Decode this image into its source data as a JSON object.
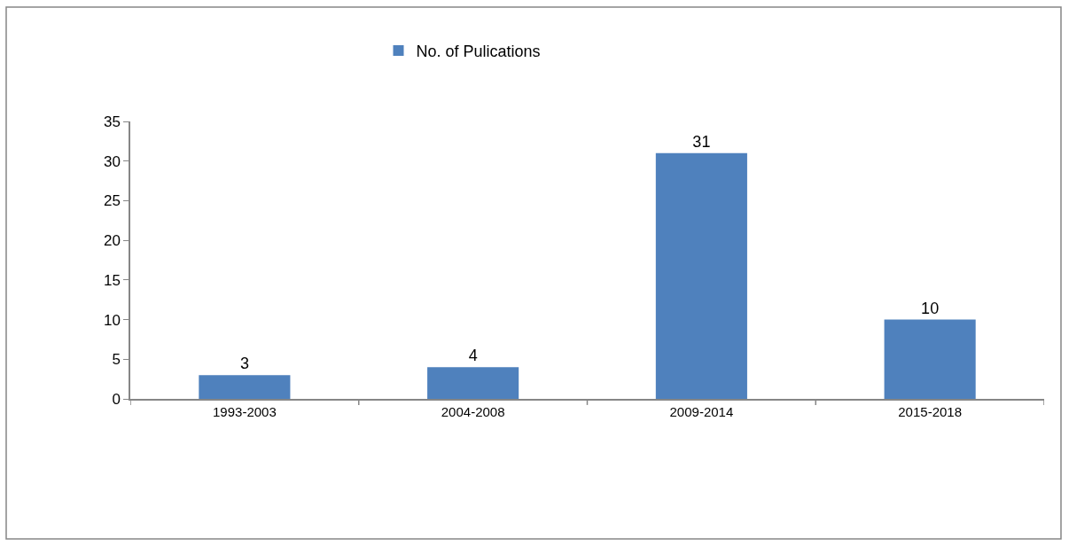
{
  "chart_data": {
    "type": "bar",
    "categories": [
      "1993-2003",
      "2004-2008",
      "2009-2014",
      "2015-2018"
    ],
    "series": [
      {
        "name": "No. of Pulications",
        "color": "#4f81bd",
        "values": [
          3,
          4,
          31,
          10
        ]
      }
    ],
    "ylim": [
      0,
      35
    ],
    "yticks": [
      0,
      5,
      10,
      15,
      20,
      25,
      30,
      35
    ],
    "data_labels": true,
    "legend": "top"
  }
}
